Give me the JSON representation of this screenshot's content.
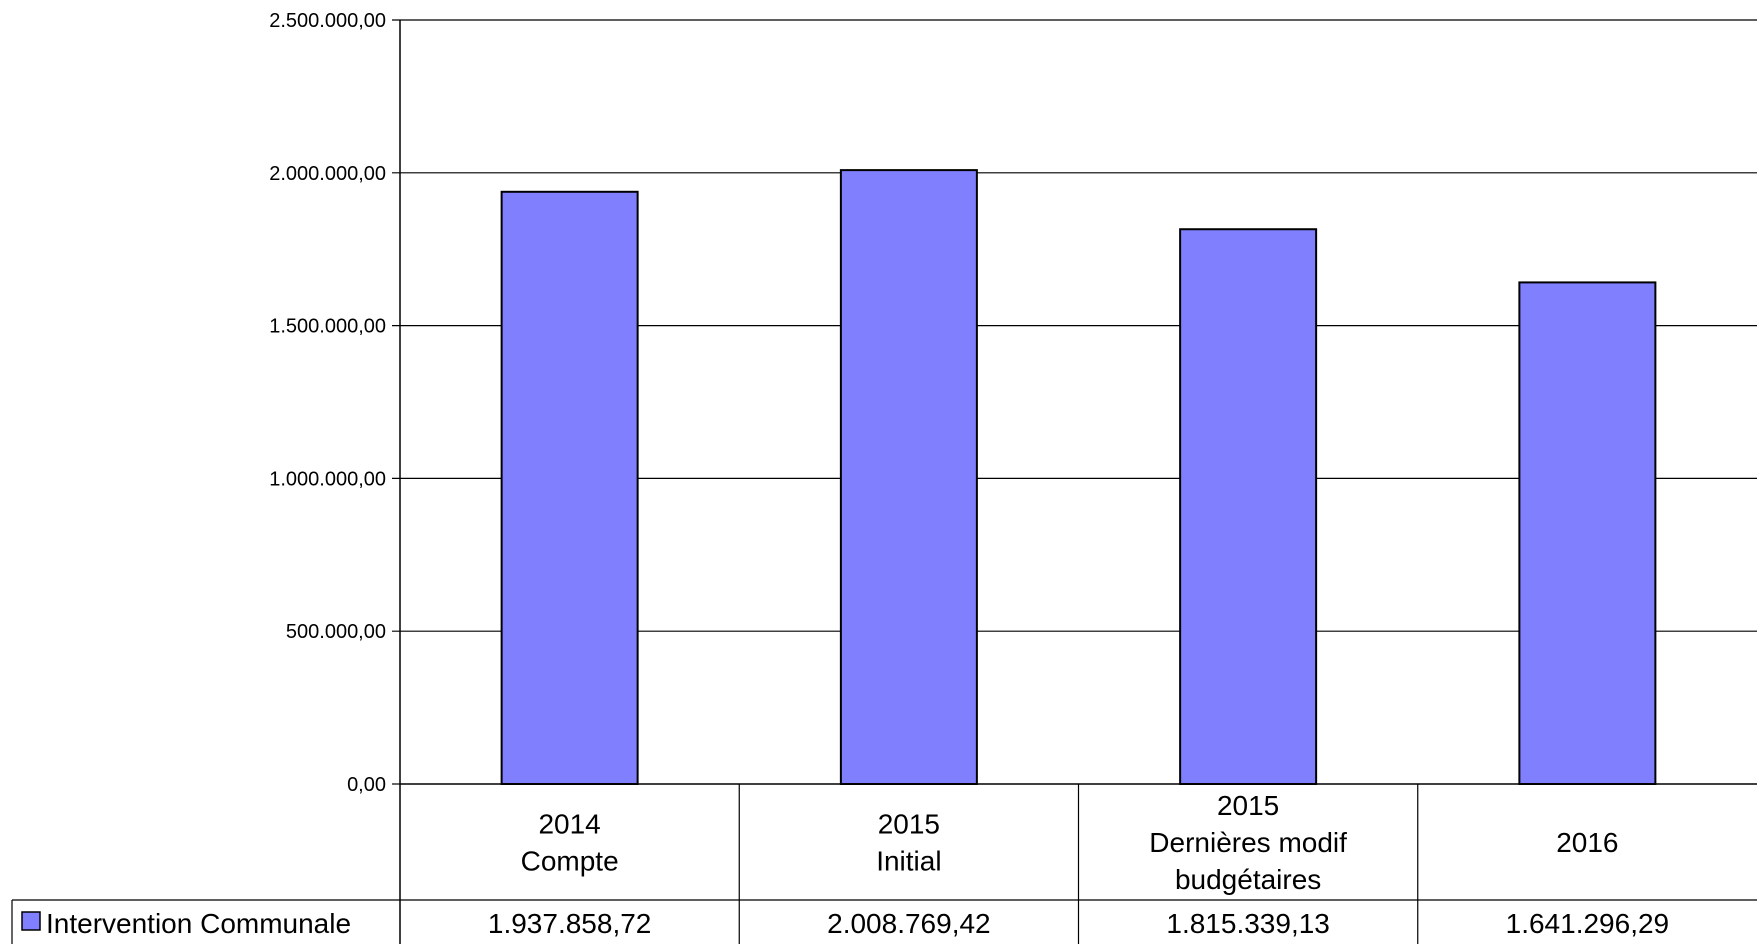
{
  "chart_data": {
    "type": "bar",
    "categories": [
      [
        "2014",
        "Compte"
      ],
      [
        "2015",
        "Initial"
      ],
      [
        "2015",
        "Dernières modif",
        "budgétaires"
      ],
      [
        "2016"
      ]
    ],
    "series": [
      {
        "name": "Intervention Communale",
        "values": [
          1937858.72,
          2008769.42,
          1815339.13,
          1641296.29
        ],
        "value_labels": [
          "1.937.858,72",
          "2.008.769,42",
          "1.815.339,13",
          "1.641.296,29"
        ],
        "color": "#8080ff"
      }
    ],
    "y_ticks": [
      {
        "value": 0,
        "label": "0,00"
      },
      {
        "value": 500000,
        "label": "500.000,00"
      },
      {
        "value": 1000000,
        "label": "1.000.000,00"
      },
      {
        "value": 1500000,
        "label": "1.500.000,00"
      },
      {
        "value": 2000000,
        "label": "2.000.000,00"
      },
      {
        "value": 2500000,
        "label": "2.500.000,00"
      }
    ],
    "ylim": [
      0,
      2500000
    ],
    "grid": true,
    "legend": "data-table",
    "title": "",
    "xlabel": "",
    "ylabel": ""
  }
}
